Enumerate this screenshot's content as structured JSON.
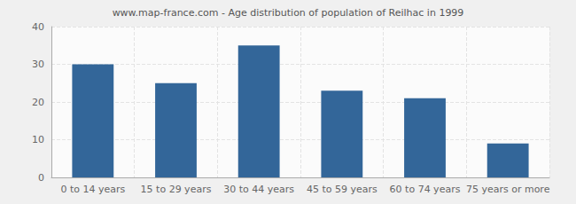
{
  "chart_data": {
    "type": "bar",
    "title": "www.map-france.com - Age distribution of population of Reilhac in 1999",
    "categories": [
      "0 to 14 years",
      "15 to 29 years",
      "30 to 44 years",
      "45 to 59 years",
      "60 to 74 years",
      "75 years or more"
    ],
    "values": [
      30,
      25,
      35,
      23,
      21,
      9
    ],
    "color": "#336699",
    "ylim": [
      0,
      40
    ],
    "yticks": [
      0,
      10,
      20,
      30,
      40
    ],
    "grid": true
  }
}
